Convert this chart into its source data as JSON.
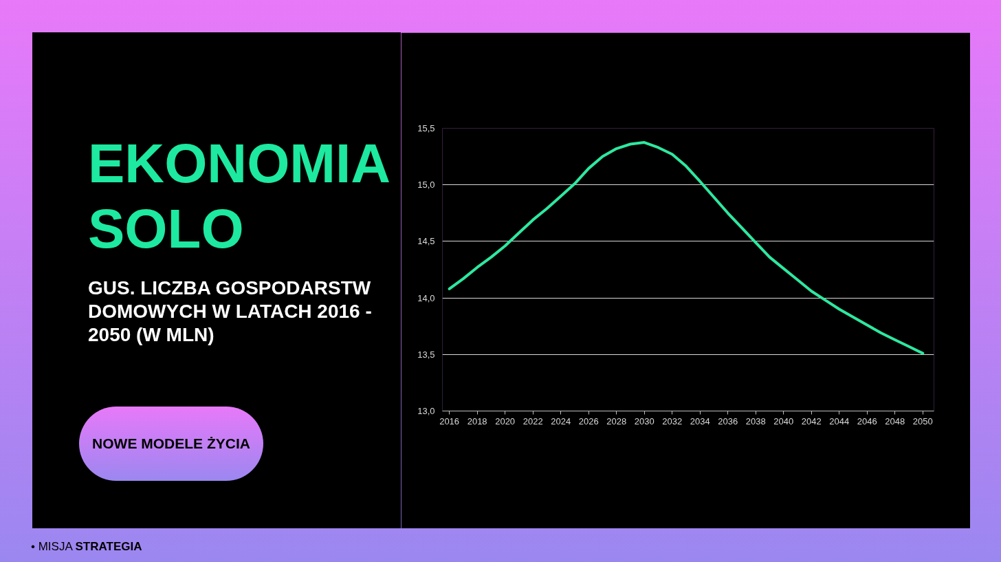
{
  "chart_data": {
    "type": "line",
    "title": "EKONOMIA SOLO",
    "subtitle": "GUS. LICZBA GOSPODARSTW DOMOWYCH W LATACH 2016 - 2050 (W MLN)",
    "annotations": [
      "NOWE MODELE ŻYCIA",
      "• MISJA STRATEGIA"
    ],
    "x": [
      2016,
      2017,
      2018,
      2019,
      2020,
      2021,
      2022,
      2023,
      2024,
      2025,
      2026,
      2027,
      2028,
      2029,
      2030,
      2031,
      2032,
      2033,
      2034,
      2035,
      2036,
      2037,
      2038,
      2039,
      2040,
      2041,
      2042,
      2043,
      2044,
      2045,
      2046,
      2047,
      2048,
      2049,
      2050
    ],
    "series": [
      {
        "color": "#2ee8a0",
        "values": [
          14.08,
          14.17,
          14.27,
          14.36,
          14.46,
          14.575,
          14.69,
          14.79,
          14.9,
          15.01,
          15.145,
          15.25,
          15.32,
          15.36,
          15.375,
          15.33,
          15.27,
          15.165,
          15.03,
          14.89,
          14.75,
          14.62,
          14.49,
          14.36,
          14.26,
          14.16,
          14.06,
          13.98,
          13.9,
          13.83,
          13.76,
          13.69,
          13.63,
          13.57,
          13.51
        ]
      }
    ],
    "xlim": [
      2015.5,
      2050.8
    ],
    "ylim": [
      13.0,
      15.5
    ],
    "xticks": [
      2016,
      2018,
      2020,
      2022,
      2024,
      2026,
      2028,
      2030,
      2032,
      2034,
      2036,
      2038,
      2040,
      2042,
      2044,
      2046,
      2048,
      2050
    ],
    "yticks": [
      {
        "value": 13.0,
        "label": "13,0"
      },
      {
        "value": 13.5,
        "label": "13,5"
      },
      {
        "value": 14.0,
        "label": "14,0"
      },
      {
        "value": 14.5,
        "label": "14,5"
      },
      {
        "value": 15.0,
        "label": "15,0"
      },
      {
        "value": 15.5,
        "label": "15,5"
      }
    ],
    "grid": "y"
  }
}
